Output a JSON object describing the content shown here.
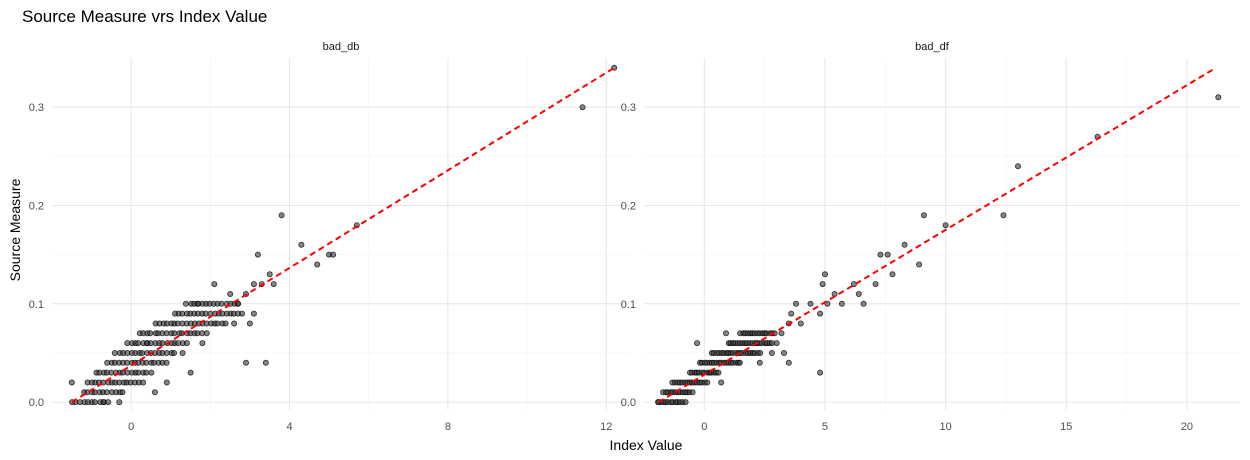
{
  "chart_data": {
    "type": "scatter",
    "title": "Source Measure vrs Index Value",
    "xlabel": "Index Value",
    "ylabel": "Source Measure",
    "grid": true,
    "trendline": {
      "style": "dashed",
      "color": "#ff0000"
    },
    "point_color": "#333333",
    "panels": [
      {
        "name": "bad_db",
        "xlim": [
          -2,
          12.6
        ],
        "ylim": [
          -0.008,
          0.35
        ],
        "xticks": [
          0,
          4,
          8,
          12
        ],
        "xtick_labels": [
          "0",
          "4",
          "8",
          "12"
        ],
        "yticks": [
          0.0,
          0.1,
          0.2,
          0.3
        ],
        "ytick_labels": [
          "0.0",
          "0.1",
          "0.2",
          "0.3"
        ],
        "trend": {
          "x0": -1.5,
          "y0": 0.0,
          "x1": 12.2,
          "y1": 0.34
        },
        "clusters": [
          {
            "y": 0.0,
            "x_from": -1.5,
            "x_to": -0.6
          },
          {
            "y": 0.01,
            "x_from": -1.2,
            "x_to": -0.2
          },
          {
            "y": 0.02,
            "x_from": -1.1,
            "x_to": 0.3
          },
          {
            "y": 0.03,
            "x_from": -0.9,
            "x_to": 0.5
          },
          {
            "y": 0.04,
            "x_from": -0.6,
            "x_to": 0.9
          },
          {
            "y": 0.05,
            "x_from": -0.4,
            "x_to": 1.1
          },
          {
            "y": 0.06,
            "x_from": -0.1,
            "x_to": 1.4
          },
          {
            "y": 0.07,
            "x_from": 0.2,
            "x_to": 1.9
          },
          {
            "y": 0.08,
            "x_from": 0.6,
            "x_to": 2.4
          },
          {
            "y": 0.09,
            "x_from": 1.1,
            "x_to": 2.8
          },
          {
            "y": 0.1,
            "x_from": 1.4,
            "x_to": 2.7
          }
        ],
        "points": [
          {
            "x": -1.5,
            "y": 0.02
          },
          {
            "x": -0.7,
            "y": 0.0
          },
          {
            "x": -0.3,
            "y": 0.0
          },
          {
            "x": 0.6,
            "y": 0.01
          },
          {
            "x": 0.9,
            "y": 0.02
          },
          {
            "x": 1.5,
            "y": 0.03
          },
          {
            "x": 1.3,
            "y": 0.05
          },
          {
            "x": 0.4,
            "y": 0.06
          },
          {
            "x": 1.8,
            "y": 0.06
          },
          {
            "x": 1.7,
            "y": 0.1
          },
          {
            "x": 2.1,
            "y": 0.12
          },
          {
            "x": 2.5,
            "y": 0.11
          },
          {
            "x": 2.7,
            "y": 0.1
          },
          {
            "x": 2.9,
            "y": 0.11
          },
          {
            "x": 3.1,
            "y": 0.12
          },
          {
            "x": 3.3,
            "y": 0.12
          },
          {
            "x": 3.2,
            "y": 0.15
          },
          {
            "x": 3.5,
            "y": 0.13
          },
          {
            "x": 3.6,
            "y": 0.12
          },
          {
            "x": 3.8,
            "y": 0.19
          },
          {
            "x": 4.3,
            "y": 0.16
          },
          {
            "x": 4.7,
            "y": 0.14
          },
          {
            "x": 5.0,
            "y": 0.15
          },
          {
            "x": 5.1,
            "y": 0.15
          },
          {
            "x": 5.7,
            "y": 0.18
          },
          {
            "x": 2.9,
            "y": 0.04
          },
          {
            "x": 3.4,
            "y": 0.04
          },
          {
            "x": 3.0,
            "y": 0.08
          },
          {
            "x": 3.1,
            "y": 0.09
          },
          {
            "x": 2.6,
            "y": 0.08
          },
          {
            "x": 11.4,
            "y": 0.3
          },
          {
            "x": 12.2,
            "y": 0.34
          }
        ]
      },
      {
        "name": "bad_df",
        "xlim": [
          -2.5,
          22.2
        ],
        "ylim": [
          -0.008,
          0.35
        ],
        "xticks": [
          0,
          5,
          10,
          15,
          20
        ],
        "xtick_labels": [
          "0",
          "5",
          "10",
          "15",
          "20"
        ],
        "yticks": [
          0.0,
          0.1,
          0.2,
          0.3
        ],
        "ytick_labels": [
          "0.0",
          "0.1",
          "0.2",
          "0.3"
        ],
        "trend": {
          "x0": -1.9,
          "y0": 0.0,
          "x1": 21.2,
          "y1": 0.34
        },
        "clusters": [
          {
            "y": 0.0,
            "x_from": -1.9,
            "x_to": -0.8
          },
          {
            "y": 0.01,
            "x_from": -1.7,
            "x_to": -0.5
          },
          {
            "y": 0.02,
            "x_from": -1.3,
            "x_to": 0.1
          },
          {
            "y": 0.03,
            "x_from": -0.6,
            "x_to": 0.6
          },
          {
            "y": 0.04,
            "x_from": -0.2,
            "x_to": 1.5
          },
          {
            "y": 0.05,
            "x_from": 0.3,
            "x_to": 2.3
          },
          {
            "y": 0.06,
            "x_from": 1.0,
            "x_to": 2.8
          },
          {
            "y": 0.07,
            "x_from": 1.5,
            "x_to": 2.9
          }
        ],
        "points": [
          {
            "x": -1.9,
            "y": 0.0
          },
          {
            "x": -0.3,
            "y": 0.06
          },
          {
            "x": 0.9,
            "y": 0.07
          },
          {
            "x": 0.7,
            "y": 0.02
          },
          {
            "x": 2.3,
            "y": 0.04
          },
          {
            "x": 3.3,
            "y": 0.05
          },
          {
            "x": 3.0,
            "y": 0.06
          },
          {
            "x": 3.5,
            "y": 0.08
          },
          {
            "x": 3.2,
            "y": 0.07
          },
          {
            "x": 3.6,
            "y": 0.09
          },
          {
            "x": 4.0,
            "y": 0.08
          },
          {
            "x": 3.8,
            "y": 0.1
          },
          {
            "x": 4.4,
            "y": 0.1
          },
          {
            "x": 4.8,
            "y": 0.09
          },
          {
            "x": 4.9,
            "y": 0.12
          },
          {
            "x": 5.0,
            "y": 0.13
          },
          {
            "x": 5.1,
            "y": 0.1
          },
          {
            "x": 5.4,
            "y": 0.11
          },
          {
            "x": 5.7,
            "y": 0.1
          },
          {
            "x": 6.2,
            "y": 0.12
          },
          {
            "x": 6.4,
            "y": 0.11
          },
          {
            "x": 6.6,
            "y": 0.1
          },
          {
            "x": 7.3,
            "y": 0.15
          },
          {
            "x": 7.6,
            "y": 0.15
          },
          {
            "x": 7.8,
            "y": 0.13
          },
          {
            "x": 7.1,
            "y": 0.12
          },
          {
            "x": 8.3,
            "y": 0.16
          },
          {
            "x": 8.9,
            "y": 0.14
          },
          {
            "x": 9.1,
            "y": 0.19
          },
          {
            "x": 10.0,
            "y": 0.18
          },
          {
            "x": 12.4,
            "y": 0.19
          },
          {
            "x": 13.0,
            "y": 0.24
          },
          {
            "x": 16.3,
            "y": 0.27
          },
          {
            "x": 21.3,
            "y": 0.31
          },
          {
            "x": 3.5,
            "y": 0.04
          },
          {
            "x": 4.8,
            "y": 0.03
          },
          {
            "x": 2.8,
            "y": 0.05
          }
        ]
      }
    ]
  }
}
